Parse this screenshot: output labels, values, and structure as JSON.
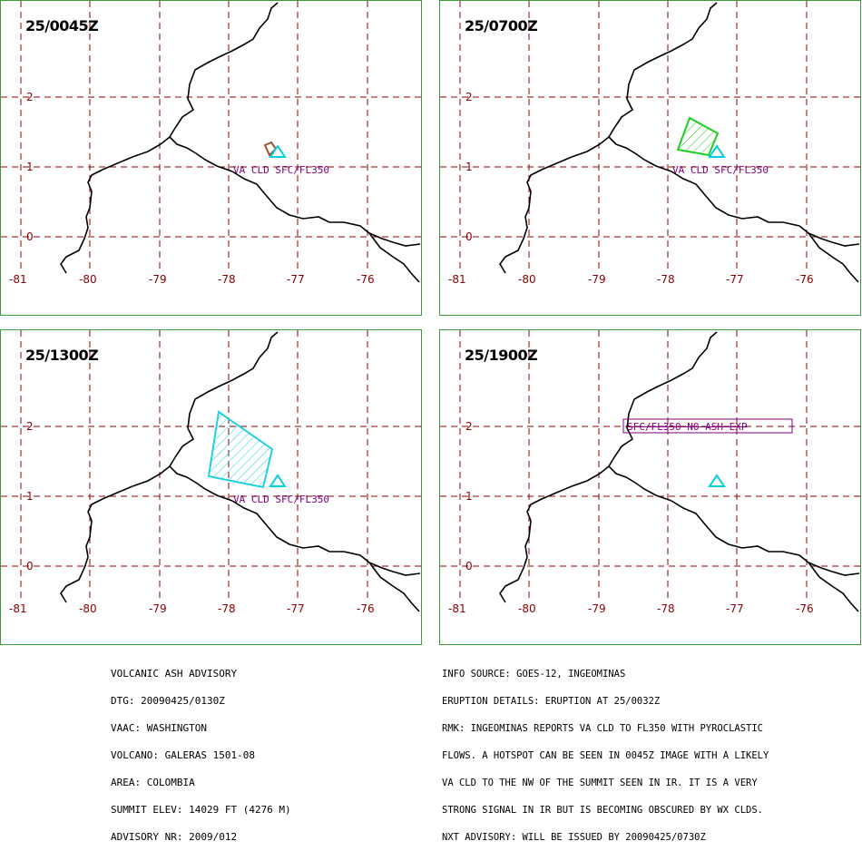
{
  "panels": [
    {
      "valid_time": "25/0045Z",
      "label": "VA CLD SFC/FL350"
    },
    {
      "valid_time": "25/0700Z",
      "label": "VA CLD SFC/FL350"
    },
    {
      "valid_time": "25/1300Z",
      "label": "VA CLD SFC/FL350"
    },
    {
      "valid_time": "25/1900Z",
      "label": "SFC/FL350 NO ASH EXP"
    }
  ],
  "axes": {
    "lat_ticks": [
      "2",
      "1",
      "0"
    ],
    "lon_ticks": [
      "-81",
      "-80",
      "-79",
      "-78",
      "-77",
      "-76"
    ]
  },
  "advisory_left": [
    "VOLCANIC ASH ADVISORY",
    "DTG: 20090425/0130Z",
    "VAAC: WASHINGTON",
    "VOLCANO: GALERAS 1501-08",
    "AREA: COLOMBIA",
    "SUMMIT ELEV: 14029 FT (4276 M)",
    "ADVISORY NR: 2009/012"
  ],
  "advisory_right": [
    "INFO SOURCE: GOES-12, INGEOMINAS",
    "ERUPTION DETAILS: ERUPTION AT 25/0032Z",
    "RMK: INGEOMINAS REPORTS VA CLD TO FL350 WITH PYROCLASTIC",
    "FLOWS. A HOTSPOT CAN BE SEEN IN 0045Z IMAGE WITH A LIKELY",
    "VA CLD TO THE NW OF THE SUMMIT SEEN IN IR. IT IS A VERY",
    "STRONG SIGNAL IN IR BUT IS BECOMING OBSCURED BY WX CLDS.",
    "NXT ADVISORY: WILL BE ISSUED BY 20090425/0730Z"
  ],
  "colors": {
    "grid": "#8b0000",
    "coast": "#000000",
    "volcano": "#00d0e0",
    "cloud_0045": "#a0522d",
    "cloud_0700": "#22cc22",
    "cloud_1300": "#22d0e0",
    "label": "#800080",
    "border": "#3c9a3c"
  },
  "icons": {
    "volcano": "volcano-triangle-icon"
  }
}
